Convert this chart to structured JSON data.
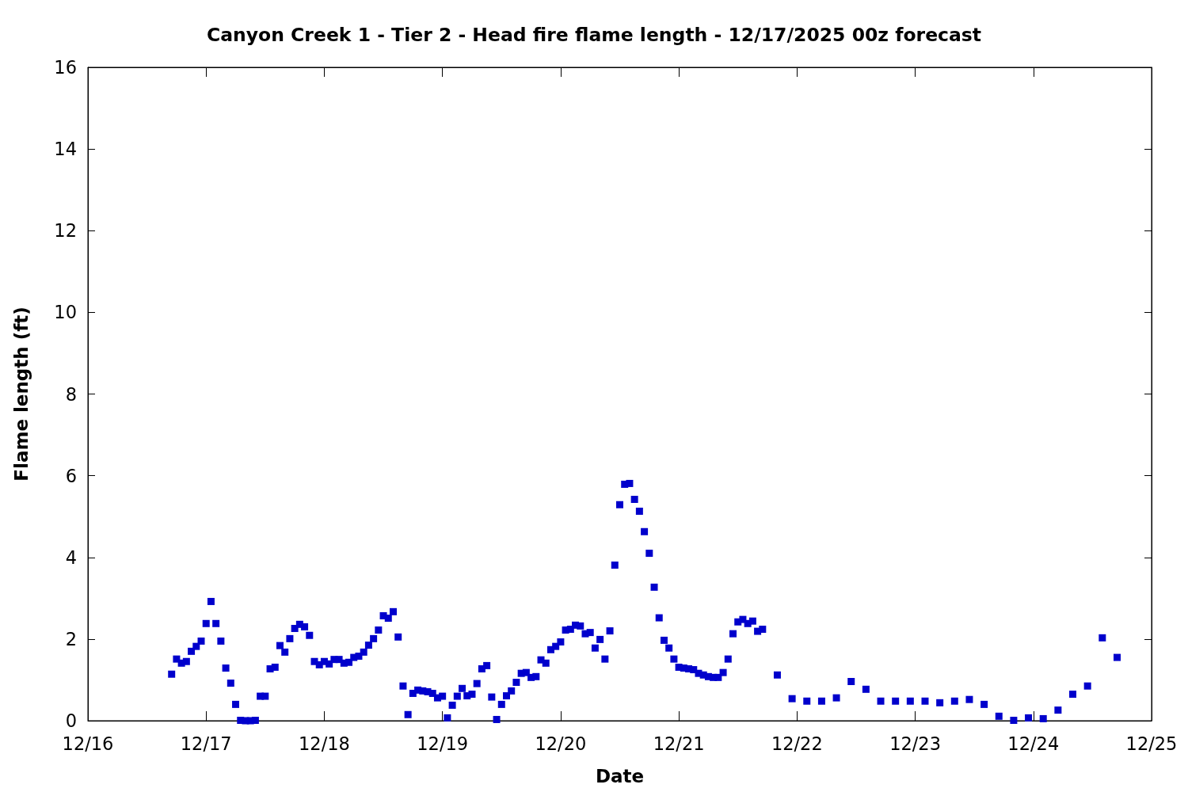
{
  "chart_data": {
    "type": "scatter",
    "title": "Canyon Creek 1 - Tier 2 - Head fire flame length - 12/17/2025 00z forecast",
    "xlabel": "Date",
    "ylabel": "Flame length (ft)",
    "xlim": [
      "--12-16",
      "--12-25"
    ],
    "xticks": [
      {
        "value": "--12-16",
        "label": "12/16"
      },
      {
        "value": "--12-17",
        "label": "12/17"
      },
      {
        "value": "--12-18",
        "label": "12/18"
      },
      {
        "value": "--12-19",
        "label": "12/19"
      },
      {
        "value": "--12-20",
        "label": "12/20"
      },
      {
        "value": "--12-21",
        "label": "12/21"
      },
      {
        "value": "--12-22",
        "label": "12/22"
      },
      {
        "value": "--12-23",
        "label": "12/23"
      },
      {
        "value": "--12-24",
        "label": "12/24"
      },
      {
        "value": "--12-25",
        "label": "12/25"
      }
    ],
    "ylim": [
      0,
      16
    ],
    "yticks": [
      0,
      2,
      4,
      6,
      8,
      10,
      12,
      14,
      16
    ],
    "grid": false,
    "marker": "square",
    "color": "#0000cc",
    "x": [
      "--12-16T17:00",
      "--12-16T18:00",
      "--12-16T19:00",
      "--12-16T20:00",
      "--12-16T21:00",
      "--12-16T22:00",
      "--12-16T23:00",
      "--12-17T00:00",
      "--12-17T01:00",
      "--12-17T02:00",
      "--12-17T03:00",
      "--12-17T04:00",
      "--12-17T05:00",
      "--12-17T06:00",
      "--12-17T07:00",
      "--12-17T08:00",
      "--12-17T09:00",
      "--12-17T10:00",
      "--12-17T11:00",
      "--12-17T12:00",
      "--12-17T13:00",
      "--12-17T14:00",
      "--12-17T15:00",
      "--12-17T16:00",
      "--12-17T17:00",
      "--12-17T18:00",
      "--12-17T19:00",
      "--12-17T20:00",
      "--12-17T21:00",
      "--12-17T22:00",
      "--12-17T23:00",
      "--12-18T00:00",
      "--12-18T01:00",
      "--12-18T02:00",
      "--12-18T03:00",
      "--12-18T04:00",
      "--12-18T05:00",
      "--12-18T06:00",
      "--12-18T07:00",
      "--12-18T08:00",
      "--12-18T09:00",
      "--12-18T10:00",
      "--12-18T11:00",
      "--12-18T12:00",
      "--12-18T13:00",
      "--12-18T14:00",
      "--12-18T15:00",
      "--12-18T16:00",
      "--12-18T17:00",
      "--12-18T18:00",
      "--12-18T19:00",
      "--12-18T20:00",
      "--12-18T21:00",
      "--12-18T22:00",
      "--12-18T23:00",
      "--12-19T00:00",
      "--12-19T01:00",
      "--12-19T02:00",
      "--12-19T03:00",
      "--12-19T04:00",
      "--12-19T05:00",
      "--12-19T06:00",
      "--12-19T07:00",
      "--12-19T08:00",
      "--12-19T09:00",
      "--12-19T10:00",
      "--12-19T11:00",
      "--12-19T12:00",
      "--12-19T13:00",
      "--12-19T14:00",
      "--12-19T15:00",
      "--12-19T16:00",
      "--12-19T17:00",
      "--12-19T18:00",
      "--12-19T19:00",
      "--12-19T20:00",
      "--12-19T21:00",
      "--12-19T22:00",
      "--12-19T23:00",
      "--12-20T00:00",
      "--12-20T01:00",
      "--12-20T02:00",
      "--12-20T03:00",
      "--12-20T04:00",
      "--12-20T05:00",
      "--12-20T06:00",
      "--12-20T07:00",
      "--12-20T08:00",
      "--12-20T09:00",
      "--12-20T10:00",
      "--12-20T11:00",
      "--12-20T12:00",
      "--12-20T13:00",
      "--12-20T14:00",
      "--12-20T15:00",
      "--12-20T16:00",
      "--12-20T17:00",
      "--12-20T18:00",
      "--12-20T19:00",
      "--12-20T20:00",
      "--12-20T21:00",
      "--12-20T22:00",
      "--12-20T23:00",
      "--12-21T00:00",
      "--12-21T01:00",
      "--12-21T02:00",
      "--12-21T03:00",
      "--12-21T04:00",
      "--12-21T05:00",
      "--12-21T06:00",
      "--12-21T07:00",
      "--12-21T08:00",
      "--12-21T09:00",
      "--12-21T10:00",
      "--12-21T11:00",
      "--12-21T12:00",
      "--12-21T13:00",
      "--12-21T14:00",
      "--12-21T15:00",
      "--12-21T16:00",
      "--12-21T17:00",
      "--12-21T20:00",
      "--12-21T23:00",
      "--12-22T02:00",
      "--12-22T05:00",
      "--12-22T08:00",
      "--12-22T11:00",
      "--12-22T14:00",
      "--12-22T17:00",
      "--12-22T20:00",
      "--12-22T23:00",
      "--12-23T02:00",
      "--12-23T05:00",
      "--12-23T08:00",
      "--12-23T11:00",
      "--12-23T14:00",
      "--12-23T17:00",
      "--12-23T20:00",
      "--12-23T23:00",
      "--12-24T02:00",
      "--12-24T05:00",
      "--12-24T08:00",
      "--12-24T11:00",
      "--12-24T14:00",
      "--12-24T17:00"
    ],
    "values": [
      1.14,
      1.51,
      1.41,
      1.45,
      1.7,
      1.82,
      1.95,
      2.38,
      2.92,
      2.38,
      1.95,
      1.29,
      0.92,
      0.4,
      0.01,
      0,
      0,
      0.01,
      0.6,
      0.6,
      1.27,
      1.31,
      1.84,
      1.68,
      2.01,
      2.26,
      2.36,
      2.3,
      2.09,
      1.45,
      1.37,
      1.45,
      1.39,
      1.5,
      1.5,
      1.41,
      1.43,
      1.55,
      1.58,
      1.68,
      1.85,
      2.01,
      2.22,
      2.57,
      2.51,
      2.67,
      2.05,
      0.85,
      0.15,
      0.67,
      0.75,
      0.73,
      0.71,
      0.67,
      0.56,
      0.6,
      0.07,
      0.38,
      0.6,
      0.79,
      0.61,
      0.65,
      0.91,
      1.27,
      1.35,
      0.58,
      0.03,
      0.4,
      0.61,
      0.73,
      0.94,
      1.16,
      1.18,
      1.06,
      1.08,
      1.49,
      1.41,
      1.74,
      1.82,
      1.93,
      2.22,
      2.24,
      2.34,
      2.32,
      2.13,
      2.16,
      1.78,
      1.99,
      1.51,
      2.2,
      3.81,
      5.29,
      5.79,
      5.81,
      5.42,
      5.13,
      4.63,
      4.1,
      3.27,
      2.52,
      1.97,
      1.78,
      1.51,
      1.31,
      1.29,
      1.27,
      1.25,
      1.16,
      1.12,
      1.08,
      1.06,
      1.06,
      1.18,
      1.51,
      2.13,
      2.42,
      2.48,
      2.38,
      2.44,
      2.19,
      2.24,
      1.12,
      0.54,
      0.48,
      0.48,
      0.56,
      0.96,
      0.77,
      0.48,
      0.48,
      0.48,
      0.48,
      0.44,
      0.48,
      0.52,
      0.4,
      0.11,
      0.01,
      0.07,
      0.05,
      0.26,
      0.65,
      0.85,
      2.03,
      1.55
    ]
  }
}
